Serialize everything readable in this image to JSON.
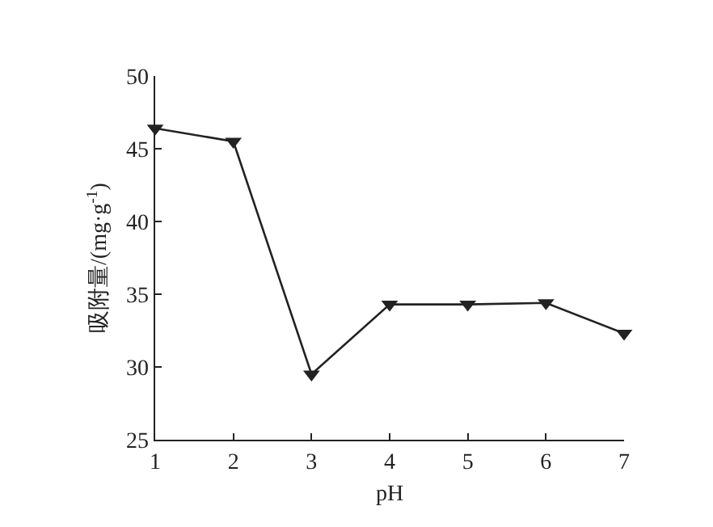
{
  "chart_data": {
    "type": "line",
    "xlabel": "pH",
    "ylabel": "吸附量/(mg·g$^{-1}$)",
    "x": [
      1,
      2,
      3,
      4,
      5,
      6,
      7
    ],
    "series": [
      {
        "color": "#222222",
        "values": [
          46.4,
          45.5,
          29.5,
          34.3,
          34.3,
          34.4,
          32.3
        ]
      }
    ],
    "xlim": [
      1,
      7
    ],
    "xticks": [
      1,
      2,
      3,
      4,
      5,
      6,
      7
    ],
    "ylim": [
      25,
      50
    ],
    "yticks": [
      25,
      30,
      35,
      40,
      45,
      50
    ],
    "marker": "triangle-down",
    "line_style": "solid",
    "grid": false
  }
}
